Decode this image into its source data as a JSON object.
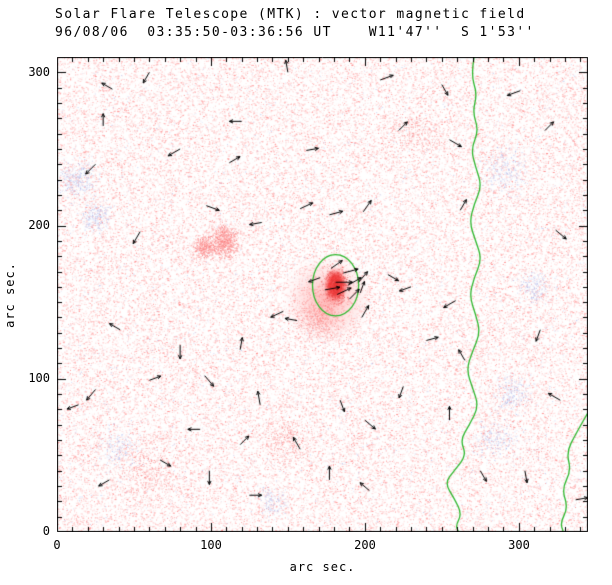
{
  "chart_data": {
    "type": "heatmap",
    "title": "Solar Flare Telescope (MTK) : vector magnetic field",
    "subtitle": "96/08/06  03:35:50-03:36:56 UT    W11'47''  S 1'53''",
    "xlabel": "arc sec.",
    "ylabel": "arc sec.",
    "xlim": [
      0,
      345
    ],
    "ylim": [
      0,
      310
    ],
    "xticks": [
      0,
      100,
      200,
      300
    ],
    "yticks": [
      0,
      100,
      200,
      300
    ],
    "xtick_labels": [
      "0",
      "100",
      "200",
      "300"
    ],
    "ytick_labels": [
      "0",
      "100",
      "200",
      "300"
    ],
    "minor_tick_interval": 10,
    "grid": false,
    "description": "Vector magnetogram: pink/red speckle field with blue speckles, a saturated red flare kernel near (181,161) arc sec enclosed by a green contour, a wavy green magnetic neutral line near x=270, a second green line segment at the right edge, and short black transverse-field vectors.",
    "colors": {
      "background": "#ffffff",
      "frame_black": "#000000",
      "flare_red": "#f51f1f",
      "contour_green": "#2eb82e",
      "vector_black": "#000000"
    },
    "flare": {
      "x": 181,
      "y": 161,
      "core_r": 8,
      "halo_r": 30
    },
    "contour": {
      "x": 181,
      "y": 161,
      "rx": 15,
      "ry": 20
    },
    "neutral_line": {
      "points": [
        [
          271,
          310
        ],
        [
          269,
          298
        ],
        [
          273,
          286
        ],
        [
          270,
          274
        ],
        [
          274,
          262
        ],
        [
          269,
          250
        ],
        [
          272,
          238
        ],
        [
          276,
          226
        ],
        [
          271,
          214
        ],
        [
          268,
          202
        ],
        [
          272,
          190
        ],
        [
          276,
          178
        ],
        [
          271,
          166
        ],
        [
          268,
          154
        ],
        [
          272,
          142
        ],
        [
          275,
          130
        ],
        [
          270,
          118
        ],
        [
          266,
          106
        ],
        [
          270,
          94
        ],
        [
          274,
          82
        ],
        [
          268,
          70
        ],
        [
          262,
          60
        ],
        [
          266,
          50
        ],
        [
          258,
          40
        ],
        [
          252,
          32
        ],
        [
          258,
          22
        ],
        [
          263,
          12
        ],
        [
          259,
          4
        ],
        [
          261,
          0
        ]
      ]
    },
    "edge_line": {
      "points": [
        [
          345,
          78
        ],
        [
          337,
          64
        ],
        [
          331,
          52
        ],
        [
          334,
          40
        ],
        [
          328,
          28
        ],
        [
          332,
          16
        ],
        [
          327,
          6
        ],
        [
          329,
          0
        ]
      ]
    },
    "vectors": [
      [
        178,
        172,
        35,
        9
      ],
      [
        186,
        169,
        15,
        10
      ],
      [
        181,
        163,
        0,
        11
      ],
      [
        189,
        161,
        30,
        10
      ],
      [
        196,
        163,
        50,
        9
      ],
      [
        174,
        158,
        10,
        10
      ],
      [
        182,
        155,
        25,
        10
      ],
      [
        190,
        152,
        45,
        9
      ],
      [
        197,
        156,
        70,
        8
      ],
      [
        171,
        166,
        200,
        8
      ],
      [
        36,
        289,
        150,
        8
      ],
      [
        80,
        250,
        210,
        9
      ],
      [
        112,
        241,
        30,
        8
      ],
      [
        25,
        240,
        225,
        9
      ],
      [
        162,
        249,
        10,
        8
      ],
      [
        97,
        213,
        340,
        9
      ],
      [
        158,
        211,
        25,
        9
      ],
      [
        177,
        207,
        15,
        9
      ],
      [
        199,
        209,
        55,
        9
      ],
      [
        133,
        202,
        190,
        8
      ],
      [
        54,
        196,
        240,
        9
      ],
      [
        147,
        144,
        205,
        9
      ],
      [
        156,
        138,
        170,
        8
      ],
      [
        198,
        140,
        60,
        9
      ],
      [
        41,
        132,
        150,
        8
      ],
      [
        80,
        122,
        270,
        9
      ],
      [
        119,
        119,
        80,
        8
      ],
      [
        96,
        102,
        310,
        9
      ],
      [
        60,
        99,
        20,
        8
      ],
      [
        25,
        93,
        230,
        9
      ],
      [
        14,
        83,
        200,
        8
      ],
      [
        132,
        83,
        100,
        9
      ],
      [
        184,
        86,
        290,
        8
      ],
      [
        200,
        73,
        320,
        9
      ],
      [
        93,
        67,
        180,
        8
      ],
      [
        119,
        57,
        45,
        8
      ],
      [
        158,
        54,
        120,
        9
      ],
      [
        67,
        47,
        330,
        8
      ],
      [
        99,
        40,
        270,
        9
      ],
      [
        34,
        34,
        210,
        8
      ],
      [
        177,
        34,
        90,
        9
      ],
      [
        203,
        27,
        140,
        8
      ],
      [
        125,
        24,
        0,
        8
      ],
      [
        255,
        256,
        330,
        9
      ],
      [
        262,
        210,
        60,
        8
      ],
      [
        259,
        151,
        210,
        9
      ],
      [
        265,
        112,
        120,
        8
      ],
      [
        255,
        73,
        90,
        9
      ],
      [
        275,
        40,
        300,
        8
      ],
      [
        301,
        288,
        200,
        9
      ],
      [
        317,
        262,
        45,
        8
      ],
      [
        324,
        197,
        320,
        9
      ],
      [
        314,
        132,
        250,
        8
      ],
      [
        327,
        86,
        150,
        9
      ],
      [
        304,
        40,
        280,
        8
      ],
      [
        337,
        21,
        10,
        8
      ],
      [
        60,
        300,
        240,
        8
      ],
      [
        150,
        300,
        100,
        8
      ],
      [
        210,
        295,
        20,
        9
      ],
      [
        250,
        292,
        300,
        8
      ],
      [
        120,
        268,
        180,
        8
      ],
      [
        222,
        262,
        45,
        8
      ],
      [
        30,
        265,
        90,
        8
      ],
      [
        230,
        160,
        200,
        8
      ],
      [
        215,
        168,
        330,
        8
      ],
      [
        240,
        125,
        15,
        8
      ],
      [
        225,
        95,
        250,
        8
      ]
    ],
    "noise": {
      "seed": 1337,
      "pink_count": 62000,
      "blue_count": 2400,
      "pink_shades": [
        "#ffd9d9",
        "#ffc4c4",
        "#ffafaf",
        "#ff9a9a",
        "#ff8585",
        "#fcc0c0"
      ],
      "deep_pink_shades": [
        "#ff8585",
        "#ff9a9a",
        "#f77070"
      ],
      "blue_shades": [
        "#c6cff5",
        "#aebbee",
        "#96a7e6",
        "#b9c4f2"
      ],
      "blue_patches": [
        {
          "x": 12,
          "y": 230,
          "r": 15,
          "count": 350
        },
        {
          "x": 25,
          "y": 205,
          "r": 12,
          "count": 250
        },
        {
          "x": 290,
          "y": 235,
          "r": 18,
          "count": 300
        },
        {
          "x": 296,
          "y": 90,
          "r": 14,
          "count": 250
        },
        {
          "x": 310,
          "y": 160,
          "r": 12,
          "count": 200
        },
        {
          "x": 40,
          "y": 55,
          "r": 14,
          "count": 200
        },
        {
          "x": 140,
          "y": 20,
          "r": 12,
          "count": 150
        },
        {
          "x": 285,
          "y": 60,
          "r": 15,
          "count": 200
        }
      ],
      "red_patches": [
        {
          "x": 108,
          "y": 190,
          "r": 12,
          "count": 900
        },
        {
          "x": 95,
          "y": 186,
          "r": 8,
          "count": 400
        },
        {
          "x": 170,
          "y": 140,
          "r": 18,
          "count": 700
        },
        {
          "x": 150,
          "y": 60,
          "r": 20,
          "count": 300
        },
        {
          "x": 60,
          "y": 40,
          "r": 25,
          "count": 350
        },
        {
          "x": 230,
          "y": 260,
          "r": 22,
          "count": 300
        }
      ]
    }
  }
}
